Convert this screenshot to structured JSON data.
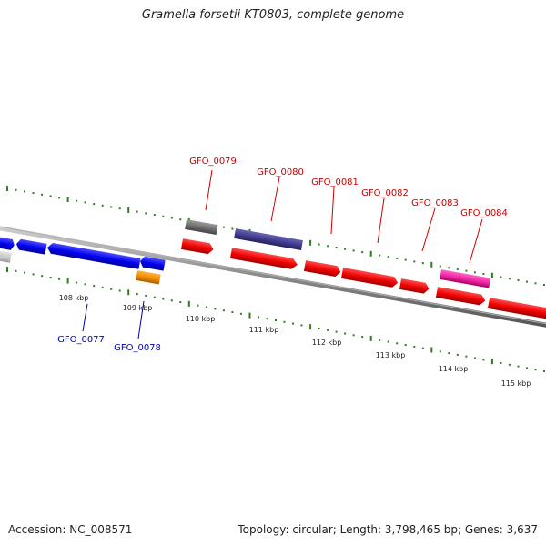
{
  "title": "Gramella forsetii KT0803, complete genome",
  "footer": {
    "accession": "Accession: NC_008571",
    "summary": "Topology: circular; Length: 3,798,465 bp; Genes: 3,637"
  },
  "colors": {
    "forward_label": "#cc0000",
    "reverse_label": "#0000aa",
    "tick": "#2e7d1e",
    "backbone": "#7a7a7a"
  },
  "scale": {
    "unit": "kbp",
    "ticks": [
      {
        "value": 108,
        "label": "108 kbp"
      },
      {
        "value": 109,
        "label": "109 kbp"
      },
      {
        "value": 110,
        "label": "110 kbp"
      },
      {
        "value": 111,
        "label": "111 kbp"
      },
      {
        "value": 112,
        "label": "112 kbp"
      },
      {
        "value": 113,
        "label": "113 kbp"
      },
      {
        "value": 114,
        "label": "114 kbp"
      },
      {
        "value": 115,
        "label": "115 kbp"
      }
    ]
  },
  "genes": {
    "forward_labels": [
      "GFO_0079",
      "GFO_0080",
      "GFO_0081",
      "GFO_0082",
      "GFO_0083",
      "GFO_0084"
    ],
    "reverse_labels": [
      "GFO_0077",
      "GFO_0078"
    ]
  }
}
